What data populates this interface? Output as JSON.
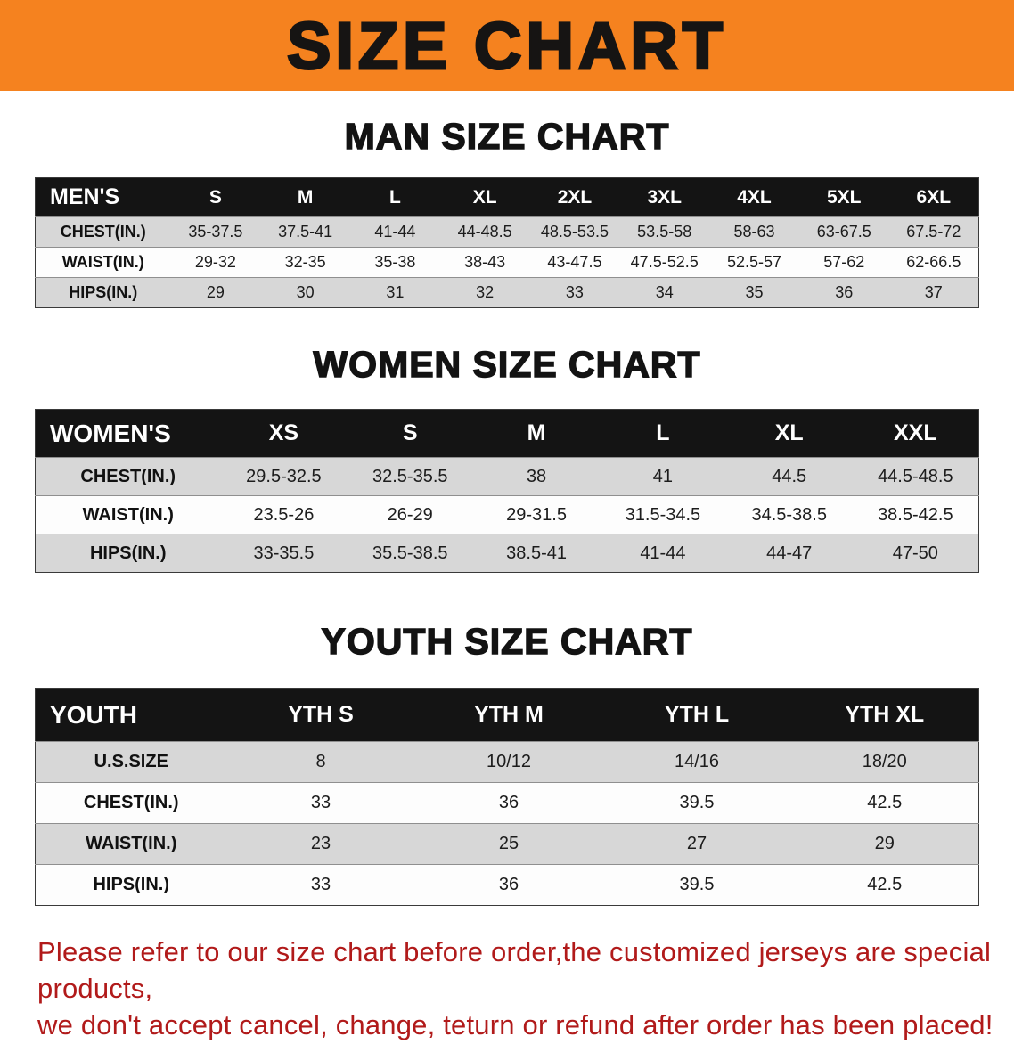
{
  "banner": {
    "title": "SIZE CHART",
    "bg_color": "#f5821f",
    "text_color": "#161413"
  },
  "sections": [
    {
      "id": "mens",
      "heading": "MAN SIZE CHART",
      "table": {
        "header": [
          "MEN'S",
          "S",
          "M",
          "L",
          "XL",
          "2XL",
          "3XL",
          "4XL",
          "5XL",
          "6XL"
        ],
        "rows": [
          [
            "CHEST(IN.)",
            "35-37.5",
            "37.5-41",
            "41-44",
            "44-48.5",
            "48.5-53.5",
            "53.5-58",
            "58-63",
            "63-67.5",
            "67.5-72"
          ],
          [
            "WAIST(IN.)",
            "29-32",
            "32-35",
            "35-38",
            "38-43",
            "43-47.5",
            "47.5-52.5",
            "52.5-57",
            "57-62",
            "62-66.5"
          ],
          [
            "HIPS(IN.)",
            "29",
            "30",
            "31",
            "32",
            "33",
            "34",
            "35",
            "36",
            "37"
          ]
        ]
      }
    },
    {
      "id": "womens",
      "heading": "WOMEN SIZE CHART",
      "table": {
        "header": [
          "WOMEN'S",
          "XS",
          "S",
          "M",
          "L",
          "XL",
          "XXL"
        ],
        "rows": [
          [
            "CHEST(IN.)",
            "29.5-32.5",
            "32.5-35.5",
            "38",
            "41",
            "44.5",
            "44.5-48.5"
          ],
          [
            "WAIST(IN.)",
            "23.5-26",
            "26-29",
            "29-31.5",
            "31.5-34.5",
            "34.5-38.5",
            "38.5-42.5"
          ],
          [
            "HIPS(IN.)",
            "33-35.5",
            "35.5-38.5",
            "38.5-41",
            "41-44",
            "44-47",
            "47-50"
          ]
        ]
      }
    },
    {
      "id": "youth",
      "heading": "YOUTH SIZE CHART",
      "table": {
        "header": [
          "YOUTH",
          "YTH S",
          "YTH M",
          "YTH L",
          "YTH XL"
        ],
        "rows": [
          [
            "U.S.SIZE",
            "8",
            "10/12",
            "14/16",
            "18/20"
          ],
          [
            "CHEST(IN.)",
            "33",
            "36",
            "39.5",
            "42.5"
          ],
          [
            "WAIST(IN.)",
            "23",
            "25",
            "27",
            "29"
          ],
          [
            "HIPS(IN.)",
            "33",
            "36",
            "39.5",
            "42.5"
          ]
        ]
      }
    }
  ],
  "disclaimer": {
    "line1": "Please refer to our size chart before order,the customized jerseys are special products,",
    "line2": "we don't accept cancel, change, teturn or refund after order has been placed!",
    "color": "#b11a1a"
  }
}
